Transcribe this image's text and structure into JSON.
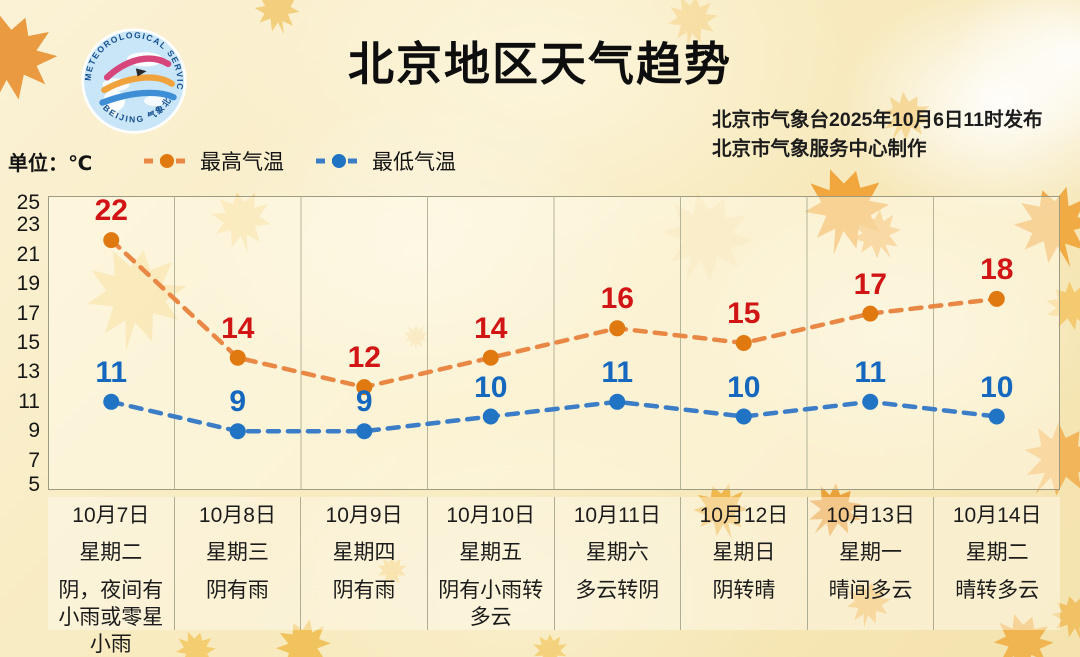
{
  "header": {
    "title": "北京地区天气趋势",
    "issued_line": "北京市气象台2025年10月6日11时发布",
    "produced_line": "北京市气象服务中心制作",
    "logo_arc_top": "METEOROLOGICAL SERVICE",
    "logo_arc_bottom": "BEIJING 气象北京"
  },
  "unit_label": "单位：℃",
  "colors": {
    "max_line": "#E98845",
    "max_dot": "#E07A10",
    "max_value_label": "#D11414",
    "min_line": "#3B7DC6",
    "min_dot": "#2173C4",
    "min_value_label": "#1568BE",
    "grid": "#a9a98e",
    "title_text": "#0e0e0e"
  },
  "chart_data": {
    "type": "line",
    "title": "北京地区天气趋势",
    "ylabel": "℃",
    "ylim": [
      5,
      25
    ],
    "yticks": [
      25,
      23,
      21,
      19,
      17,
      15,
      13,
      11,
      9,
      7,
      5
    ],
    "grid": "vertical-only",
    "legend_position": "top-left",
    "categories": [
      {
        "date": "10月7日",
        "weekday": "星期二",
        "weather": "阴，夜间有小雨或零星小雨"
      },
      {
        "date": "10月8日",
        "weekday": "星期三",
        "weather": "阴有雨"
      },
      {
        "date": "10月9日",
        "weekday": "星期四",
        "weather": "阴有雨"
      },
      {
        "date": "10月10日",
        "weekday": "星期五",
        "weather": "阴有小雨转多云"
      },
      {
        "date": "10月11日",
        "weekday": "星期六",
        "weather": "多云转阴"
      },
      {
        "date": "10月12日",
        "weekday": "星期日",
        "weather": "阴转晴"
      },
      {
        "date": "10月13日",
        "weekday": "星期一",
        "weather": "晴间多云"
      },
      {
        "date": "10月14日",
        "weekday": "星期二",
        "weather": "晴转多云"
      }
    ],
    "series": [
      {
        "name": "最高气温",
        "values": [
          22,
          14,
          12,
          14,
          16,
          15,
          17,
          18
        ],
        "line_color": "#E98845",
        "dot_color": "#E07A10",
        "label_color": "#D11414"
      },
      {
        "name": "最低气温",
        "values": [
          11,
          9,
          9,
          10,
          11,
          10,
          11,
          10
        ],
        "line_color": "#3B7DC6",
        "dot_color": "#2173C4",
        "label_color": "#1568BE"
      }
    ]
  }
}
